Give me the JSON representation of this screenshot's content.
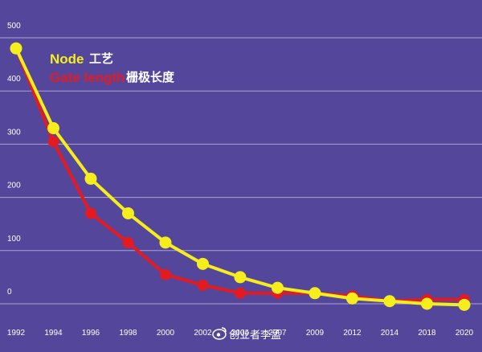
{
  "colors": {
    "background": "#54479b",
    "grid": "#c9c4e6",
    "node": "#f6ee1c",
    "gate": "#e21b23"
  },
  "chart_data": {
    "type": "line",
    "x": [
      "1992",
      "1994",
      "1996",
      "1998",
      "2000",
      "2002",
      "2004",
      "2007",
      "2009",
      "2012",
      "2014",
      "2018",
      "2020"
    ],
    "series": [
      {
        "name": "Node",
        "name_zh": "工艺",
        "color": "#f6ee1c",
        "values": [
          480,
          330,
          235,
          170,
          115,
          75,
          50,
          30,
          20,
          10,
          5,
          0,
          -2
        ]
      },
      {
        "name": "Gate length",
        "name_zh": "栅极长度",
        "color": "#e21b23",
        "values": [
          480,
          305,
          170,
          115,
          55,
          35,
          20,
          20,
          20,
          15,
          5,
          8,
          8
        ]
      }
    ],
    "yticks": [
      "500",
      "400",
      "300",
      "200",
      "100",
      "0"
    ],
    "ylim": [
      -20,
      500
    ],
    "grid": true,
    "legend_position": "top-left"
  },
  "watermark": {
    "icon": "weibo-icon",
    "text": "创业者李孟"
  }
}
